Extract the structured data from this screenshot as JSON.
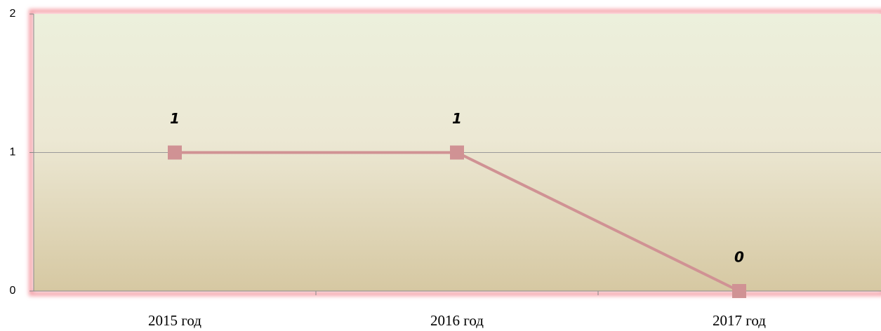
{
  "chart_data": {
    "type": "line",
    "categories": [
      "2015 год",
      "2016 год",
      "2017 год"
    ],
    "values": [
      1,
      1,
      0
    ],
    "color": "#d09294",
    "ylim": [
      0,
      2
    ],
    "yticks": [
      0,
      1,
      2
    ],
    "grid": true
  }
}
